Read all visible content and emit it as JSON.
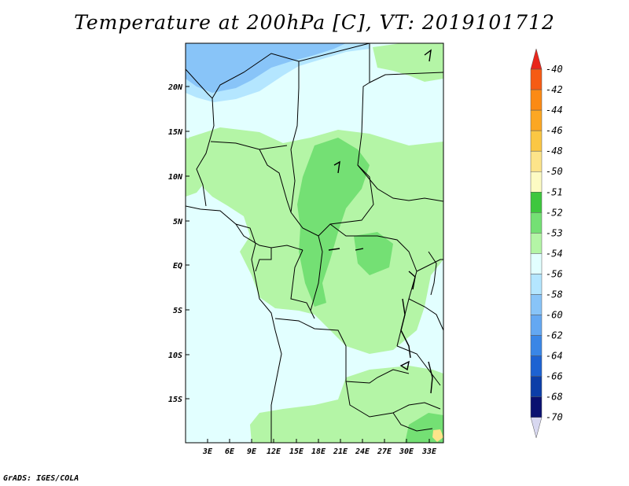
{
  "title": "Temperature at 200hPa [C], VT: 2019101712",
  "lat_labels": [
    "20N",
    "15N",
    "10N",
    "5N",
    "EQ",
    "5S",
    "10S",
    "15S"
  ],
  "lon_labels": [
    "3E",
    "6E",
    "9E",
    "12E",
    "15E",
    "18E",
    "21E",
    "24E",
    "27E",
    "30E",
    "33E"
  ],
  "colorbar": {
    "labels": [
      "-40",
      "-42",
      "-44",
      "-46",
      "-48",
      "-50",
      "-51",
      "-52",
      "-53",
      "-54",
      "-56",
      "-58",
      "-60",
      "-62",
      "-64",
      "-66",
      "-68",
      "-70"
    ],
    "colors": [
      "#e8261b",
      "#f65b14",
      "#fb8a14",
      "#fca723",
      "#fbc744",
      "#fde48a",
      "#fdfbc3",
      "#3ec73e",
      "#74e074",
      "#b4f5a6",
      "#e2ffff",
      "#b4e6ff",
      "#88c4f8",
      "#64a8f2",
      "#3a86e6",
      "#1d62d2",
      "#0c3ea8",
      "#0a1070",
      "#d8d8f0"
    ]
  },
  "footer": "GrADS: IGES/COLA"
}
